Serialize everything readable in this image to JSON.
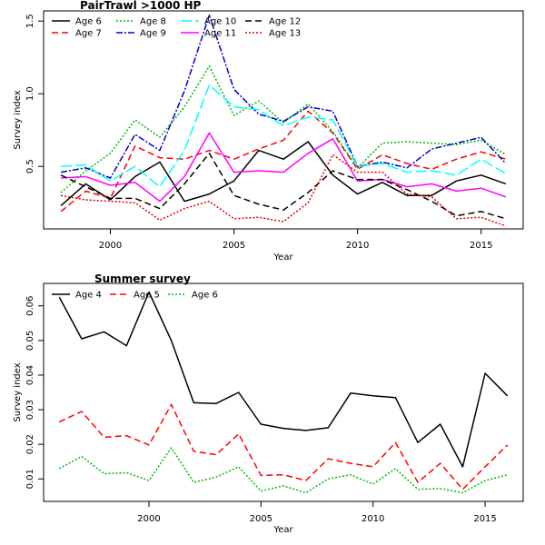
{
  "chart_data": [
    {
      "type": "line",
      "title": "PairTrawl >1000 HP",
      "xlabel": "Year",
      "ylabel": "Survey index",
      "xlim": [
        1997.3,
        2016.7
      ],
      "ylim": [
        0.07,
        1.57
      ],
      "xticks": [
        2000,
        2005,
        2010,
        2015
      ],
      "yticks": [
        0.5,
        1.0,
        1.5
      ],
      "legend_position": "top-left",
      "x": [
        1998,
        1999,
        2000,
        2001,
        2002,
        2003,
        2004,
        2005,
        2006,
        2007,
        2008,
        2009,
        2010,
        2011,
        2012,
        2013,
        2014,
        2015,
        2016
      ],
      "series": [
        {
          "name": "Age 6",
          "color": "#000000",
          "dash": "",
          "values": [
            0.23,
            0.38,
            0.27,
            0.43,
            0.53,
            0.26,
            0.31,
            0.4,
            0.61,
            0.55,
            0.67,
            0.44,
            0.31,
            0.39,
            0.3,
            0.3,
            0.4,
            0.44,
            0.38
          ]
        },
        {
          "name": "Age 7",
          "color": "#ff0000",
          "dash": "7,4",
          "values": [
            0.19,
            0.33,
            0.28,
            0.64,
            0.56,
            0.55,
            0.61,
            0.55,
            0.62,
            0.68,
            0.88,
            0.73,
            0.48,
            0.58,
            0.52,
            0.48,
            0.55,
            0.6,
            0.55
          ]
        },
        {
          "name": "Age 8",
          "color": "#00bb00",
          "dash": "2,2",
          "values": [
            0.32,
            0.47,
            0.59,
            0.82,
            0.7,
            0.91,
            1.19,
            0.85,
            0.95,
            0.8,
            0.93,
            0.74,
            0.49,
            0.66,
            0.67,
            0.66,
            0.65,
            0.68,
            0.58
          ]
        },
        {
          "name": "Age 9",
          "color": "#0000cc",
          "dash": "7,2,2,2",
          "values": [
            0.46,
            0.49,
            0.42,
            0.72,
            0.61,
            1.02,
            1.54,
            1.03,
            0.86,
            0.81,
            0.91,
            0.88,
            0.5,
            0.53,
            0.49,
            0.62,
            0.66,
            0.7,
            0.52
          ]
        },
        {
          "name": "Age 10",
          "color": "#00ffff",
          "dash": "12,4",
          "values": [
            0.5,
            0.51,
            0.4,
            0.5,
            0.36,
            0.61,
            1.06,
            0.91,
            0.89,
            0.78,
            0.84,
            0.82,
            0.5,
            0.52,
            0.46,
            0.47,
            0.44,
            0.55,
            0.45
          ]
        },
        {
          "name": "Age 11",
          "color": "#ff00ff",
          "dash": "",
          "values": [
            0.42,
            0.43,
            0.37,
            0.39,
            0.26,
            0.43,
            0.73,
            0.46,
            0.47,
            0.46,
            0.59,
            0.69,
            0.4,
            0.41,
            0.36,
            0.38,
            0.33,
            0.35,
            0.29
          ]
        },
        {
          "name": "Age 12",
          "color": "#000000",
          "dash": "7,4",
          "values": [
            0.44,
            0.36,
            0.28,
            0.28,
            0.21,
            0.38,
            0.59,
            0.3,
            0.24,
            0.2,
            0.32,
            0.47,
            0.41,
            0.41,
            0.34,
            0.26,
            0.16,
            0.19,
            0.14
          ]
        },
        {
          "name": "Age 13",
          "color": "#dd0000",
          "dash": "2,2",
          "values": [
            0.3,
            0.27,
            0.26,
            0.25,
            0.13,
            0.21,
            0.26,
            0.14,
            0.15,
            0.12,
            0.25,
            0.58,
            0.46,
            0.46,
            0.31,
            0.29,
            0.14,
            0.15,
            0.09
          ]
        }
      ]
    },
    {
      "type": "line",
      "title": "Summer survey",
      "xlabel": "Year",
      "ylabel": "Survey index",
      "xlim": [
        1995.3,
        2016.7
      ],
      "ylim": [
        0.0035,
        0.0665
      ],
      "xticks": [
        2000,
        2005,
        2010,
        2015
      ],
      "yticks": [
        0.01,
        0.02,
        0.03,
        0.04,
        0.05,
        0.06
      ],
      "ytick_labels": [
        "0.01",
        "0.02",
        "0.03",
        "0.04",
        "0.05",
        "0.06"
      ],
      "legend_position": "top-left",
      "x": [
        1996,
        1997,
        1998,
        1999,
        2000,
        2001,
        2002,
        2003,
        2004,
        2005,
        2006,
        2007,
        2008,
        2009,
        2010,
        2011,
        2012,
        2013,
        2014,
        2015,
        2016
      ],
      "series": [
        {
          "name": "Age 4",
          "color": "#000000",
          "dash": "",
          "values": [
            0.0625,
            0.0505,
            0.0525,
            0.0485,
            0.064,
            0.05,
            0.032,
            0.0318,
            0.035,
            0.0258,
            0.0246,
            0.024,
            0.0248,
            0.0348,
            0.034,
            0.0335,
            0.0205,
            0.0258,
            0.0135,
            0.0405,
            0.034
          ]
        },
        {
          "name": "Age 5",
          "color": "#ff0000",
          "dash": "7,4",
          "values": [
            0.0265,
            0.0295,
            0.022,
            0.0225,
            0.0198,
            0.0315,
            0.018,
            0.017,
            0.023,
            0.011,
            0.0112,
            0.0095,
            0.0158,
            0.0145,
            0.0135,
            0.0205,
            0.009,
            0.0145,
            0.007,
            0.0135,
            0.0198
          ]
        },
        {
          "name": "Age 6",
          "color": "#00bb00",
          "dash": "2,2",
          "values": [
            0.013,
            0.0165,
            0.0115,
            0.0118,
            0.0095,
            0.019,
            0.009,
            0.0105,
            0.0135,
            0.0065,
            0.008,
            0.006,
            0.01,
            0.0112,
            0.0085,
            0.013,
            0.007,
            0.0072,
            0.006,
            0.0095,
            0.0112
          ]
        }
      ]
    }
  ]
}
